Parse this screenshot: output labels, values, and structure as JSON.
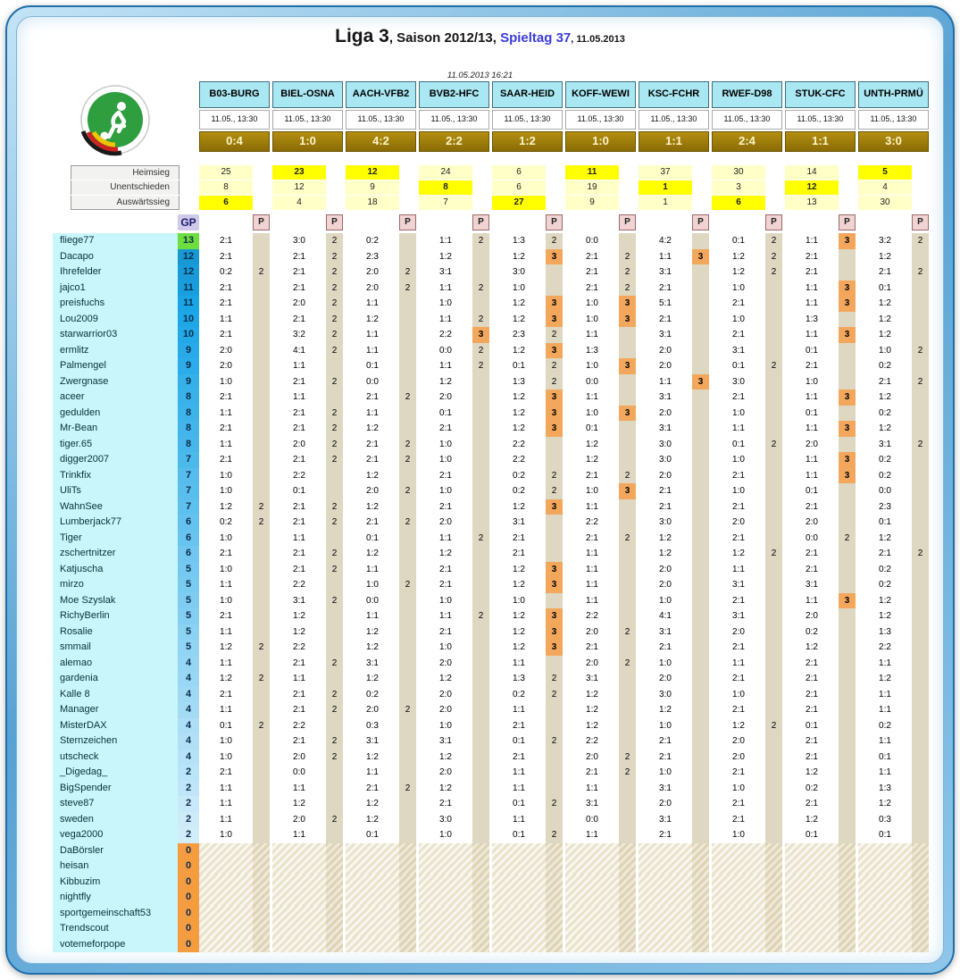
{
  "title": {
    "part1": "Liga 3",
    "part2": ", Saison 2012/13, ",
    "part3": "Spieltag 37",
    "part4": ", 11.05.2013"
  },
  "timestamp": "11.05.2013 16:21",
  "outcome_labels": {
    "home": "Heimsieg",
    "draw": "Unentschieden",
    "away": "Auswärtssieg"
  },
  "gp_header": "GP",
  "p_header": "P",
  "colors": {
    "header_cyan": "#a9e7f2",
    "result_bg1": "#b38f10",
    "result_bg2": "#8a6b06",
    "tip_bg": "#ffffc8",
    "tip_hot": "#ffff00",
    "strip": "#ded7c1",
    "p3": "#f3a75c",
    "gp_zero": "#f59b40",
    "gp_top": "#6ede3e",
    "name_bg": "#c9f6fa",
    "accent_blue": "#3b3bd6"
  },
  "matches": [
    {
      "code": "B03-BURG",
      "datetime": "11.05., 13:30",
      "result": "0:4",
      "tips": {
        "home": 25,
        "draw": 8,
        "away": 6
      },
      "outcome": "away"
    },
    {
      "code": "BIEL-OSNA",
      "datetime": "11.05., 13:30",
      "result": "1:0",
      "tips": {
        "home": 23,
        "draw": 12,
        "away": 4
      },
      "outcome": "home"
    },
    {
      "code": "AACH-VFB2",
      "datetime": "11.05., 13:30",
      "result": "4:2",
      "tips": {
        "home": 12,
        "draw": 9,
        "away": 18
      },
      "outcome": "home"
    },
    {
      "code": "BVB2-HFC",
      "datetime": "11.05., 13:30",
      "result": "2:2",
      "tips": {
        "home": 24,
        "draw": 8,
        "away": 7
      },
      "outcome": "draw"
    },
    {
      "code": "SAAR-HEID",
      "datetime": "11.05., 13:30",
      "result": "1:2",
      "tips": {
        "home": 6,
        "draw": 6,
        "away": 27
      },
      "outcome": "away"
    },
    {
      "code": "KOFF-WEWI",
      "datetime": "11.05., 13:30",
      "result": "1:0",
      "tips": {
        "home": 11,
        "draw": 19,
        "away": 9
      },
      "outcome": "home"
    },
    {
      "code": "KSC-FCHR",
      "datetime": "11.05., 13:30",
      "result": "1:1",
      "tips": {
        "home": 37,
        "draw": 1,
        "away": 1
      },
      "outcome": "draw"
    },
    {
      "code": "RWEF-D98",
      "datetime": "11.05., 13:30",
      "result": "2:4",
      "tips": {
        "home": 30,
        "draw": 3,
        "away": 6
      },
      "outcome": "away"
    },
    {
      "code": "STUK-CFC",
      "datetime": "11.05., 13:30",
      "result": "1:1",
      "tips": {
        "home": 14,
        "draw": 12,
        "away": 13
      },
      "outcome": "draw"
    },
    {
      "code": "UNTH-PRMÜ",
      "datetime": "11.05., 13:30",
      "result": "3:0",
      "tips": {
        "home": 5,
        "draw": 4,
        "away": 30
      },
      "outcome": "home"
    }
  ],
  "players": [
    {
      "name": "fliege77",
      "gp": 13,
      "tips": [
        "2:1",
        "3:0",
        "0:2",
        "1:1",
        "1:3",
        "0:0",
        "4:2",
        "0:1",
        "1:1",
        "3:2"
      ],
      "points": [
        "",
        "2",
        "",
        "2",
        "2",
        "",
        "",
        "2",
        "3",
        "2"
      ]
    },
    {
      "name": "Dacapo",
      "gp": 12,
      "tips": [
        "2:1",
        "2:1",
        "2:3",
        "1:2",
        "1:2",
        "2:1",
        "1:1",
        "1:2",
        "2:1",
        "1:2"
      ],
      "points": [
        "",
        "2",
        "",
        "",
        "3",
        "2",
        "3",
        "2",
        "",
        ""
      ]
    },
    {
      "name": "Ihrefelder",
      "gp": 12,
      "tips": [
        "0:2",
        "2:1",
        "2:0",
        "3:1",
        "3:0",
        "2:1",
        "3:1",
        "1:2",
        "2:1",
        "2:1"
      ],
      "points": [
        "2",
        "2",
        "2",
        "",
        "",
        "2",
        "",
        "2",
        "",
        "2"
      ]
    },
    {
      "name": "jajco1",
      "gp": 11,
      "tips": [
        "2:1",
        "2:1",
        "2:0",
        "1:1",
        "1:0",
        "2:1",
        "2:1",
        "1:0",
        "1:1",
        "0:1"
      ],
      "points": [
        "",
        "2",
        "2",
        "2",
        "",
        "2",
        "",
        "",
        "3",
        ""
      ]
    },
    {
      "name": "preisfuchs",
      "gp": 11,
      "tips": [
        "2:1",
        "2:0",
        "1:1",
        "1:0",
        "1:2",
        "1:0",
        "5:1",
        "2:1",
        "1:1",
        "1:2"
      ],
      "points": [
        "",
        "2",
        "",
        "",
        "3",
        "3",
        "",
        "",
        "3",
        ""
      ]
    },
    {
      "name": "Lou2009",
      "gp": 10,
      "tips": [
        "1:1",
        "2:1",
        "1:2",
        "1:1",
        "1:2",
        "1:0",
        "2:1",
        "1:0",
        "1:3",
        "1:2"
      ],
      "points": [
        "",
        "2",
        "",
        "2",
        "3",
        "3",
        "",
        "",
        "",
        ""
      ]
    },
    {
      "name": "starwarrior03",
      "gp": 10,
      "tips": [
        "2:1",
        "3:2",
        "1:1",
        "2:2",
        "2:3",
        "1:1",
        "3:1",
        "2:1",
        "1:1",
        "1:2"
      ],
      "points": [
        "",
        "2",
        "",
        "3",
        "2",
        "",
        "",
        "",
        "3",
        ""
      ]
    },
    {
      "name": "ermlitz",
      "gp": 9,
      "tips": [
        "2:0",
        "4:1",
        "1:1",
        "0:0",
        "1:2",
        "1:3",
        "2:0",
        "3:1",
        "0:1",
        "1:0"
      ],
      "points": [
        "",
        "2",
        "",
        "2",
        "3",
        "",
        "",
        "",
        "",
        "2"
      ]
    },
    {
      "name": "Palmengel",
      "gp": 9,
      "tips": [
        "2:0",
        "1:1",
        "0:1",
        "1:1",
        "0:1",
        "1:0",
        "2:0",
        "0:1",
        "2:1",
        "0:2"
      ],
      "points": [
        "",
        "",
        "",
        "2",
        "2",
        "3",
        "",
        "2",
        "",
        ""
      ]
    },
    {
      "name": "Zwergnase",
      "gp": 9,
      "tips": [
        "1:0",
        "2:1",
        "0:0",
        "1:2",
        "1:3",
        "0:0",
        "1:1",
        "3:0",
        "1:0",
        "2:1"
      ],
      "points": [
        "",
        "2",
        "",
        "",
        "2",
        "",
        "3",
        "",
        "",
        "2"
      ]
    },
    {
      "name": "aceer",
      "gp": 8,
      "tips": [
        "2:1",
        "1:1",
        "2:1",
        "2:0",
        "1:2",
        "1:1",
        "3:1",
        "2:1",
        "1:1",
        "1:2"
      ],
      "points": [
        "",
        "",
        "2",
        "",
        "3",
        "",
        "",
        "",
        "3",
        ""
      ]
    },
    {
      "name": "gedulden",
      "gp": 8,
      "tips": [
        "1:1",
        "2:1",
        "1:1",
        "0:1",
        "1:2",
        "1:0",
        "2:0",
        "1:0",
        "0:1",
        "0:2"
      ],
      "points": [
        "",
        "2",
        "",
        "",
        "3",
        "3",
        "",
        "",
        "",
        ""
      ]
    },
    {
      "name": "Mr-Bean",
      "gp": 8,
      "tips": [
        "2:1",
        "2:1",
        "1:2",
        "2:1",
        "1:2",
        "0:1",
        "3:1",
        "1:1",
        "1:1",
        "1:2"
      ],
      "points": [
        "",
        "2",
        "",
        "",
        "3",
        "",
        "",
        "",
        "3",
        ""
      ]
    },
    {
      "name": "tiger.65",
      "gp": 8,
      "tips": [
        "1:1",
        "2:0",
        "2:1",
        "1:0",
        "2:2",
        "1:2",
        "3:0",
        "0:1",
        "2:0",
        "3:1"
      ],
      "points": [
        "",
        "2",
        "2",
        "",
        "",
        "",
        "",
        "2",
        "",
        "2"
      ]
    },
    {
      "name": "digger2007",
      "gp": 7,
      "tips": [
        "2:1",
        "2:1",
        "2:1",
        "1:0",
        "2:2",
        "1:2",
        "3:0",
        "1:0",
        "1:1",
        "0:2"
      ],
      "points": [
        "",
        "2",
        "2",
        "",
        "",
        "",
        "",
        "",
        "3",
        ""
      ]
    },
    {
      "name": "Trinkfix",
      "gp": 7,
      "tips": [
        "1:0",
        "2:2",
        "1:2",
        "2:1",
        "0:2",
        "2:1",
        "2:0",
        "2:1",
        "1:1",
        "0:2"
      ],
      "points": [
        "",
        "",
        "",
        "",
        "2",
        "2",
        "",
        "",
        "3",
        ""
      ]
    },
    {
      "name": "UliTs",
      "gp": 7,
      "tips": [
        "1:0",
        "0:1",
        "2:0",
        "1:0",
        "0:2",
        "1:0",
        "2:1",
        "1:0",
        "0:1",
        "0:0"
      ],
      "points": [
        "",
        "",
        "2",
        "",
        "2",
        "3",
        "",
        "",
        "",
        ""
      ]
    },
    {
      "name": "WahnSee",
      "gp": 7,
      "tips": [
        "1:2",
        "2:1",
        "1:2",
        "2:1",
        "1:2",
        "1:1",
        "2:1",
        "2:1",
        "2:1",
        "2:3"
      ],
      "points": [
        "2",
        "2",
        "",
        "",
        "3",
        "",
        "",
        "",
        "",
        ""
      ]
    },
    {
      "name": "Lumberjack77",
      "gp": 6,
      "tips": [
        "0:2",
        "2:1",
        "2:1",
        "2:0",
        "3:1",
        "2:2",
        "3:0",
        "2:0",
        "2:0",
        "0:1"
      ],
      "points": [
        "2",
        "2",
        "2",
        "",
        "",
        "",
        "",
        "",
        "",
        ""
      ]
    },
    {
      "name": "Tiger",
      "gp": 6,
      "tips": [
        "1:0",
        "1:1",
        "0:1",
        "1:1",
        "2:1",
        "2:1",
        "1:2",
        "2:1",
        "0:0",
        "1:2"
      ],
      "points": [
        "",
        "",
        "",
        "2",
        "",
        "2",
        "",
        "",
        "2",
        ""
      ]
    },
    {
      "name": "zschertnitzer",
      "gp": 6,
      "tips": [
        "2:1",
        "2:1",
        "1:2",
        "1:2",
        "2:1",
        "1:1",
        "1:2",
        "1:2",
        "2:1",
        "2:1"
      ],
      "points": [
        "",
        "2",
        "",
        "",
        "",
        "",
        "",
        "2",
        "",
        "2"
      ]
    },
    {
      "name": "Katjuscha",
      "gp": 5,
      "tips": [
        "1:0",
        "2:1",
        "1:1",
        "2:1",
        "1:2",
        "1:1",
        "2:0",
        "1:1",
        "2:1",
        "0:2"
      ],
      "points": [
        "",
        "2",
        "",
        "",
        "3",
        "",
        "",
        "",
        "",
        ""
      ]
    },
    {
      "name": "mirzo",
      "gp": 5,
      "tips": [
        "1:1",
        "2:2",
        "1:0",
        "2:1",
        "1:2",
        "1:1",
        "2:0",
        "3:1",
        "3:1",
        "0:2"
      ],
      "points": [
        "",
        "",
        "2",
        "",
        "3",
        "",
        "",
        "",
        "",
        ""
      ]
    },
    {
      "name": "Moe Szyslak",
      "gp": 5,
      "tips": [
        "1:0",
        "3:1",
        "0:0",
        "1:0",
        "1:0",
        "1:1",
        "1:0",
        "2:1",
        "1:1",
        "1:2"
      ],
      "points": [
        "",
        "2",
        "",
        "",
        "",
        "",
        "",
        "",
        "3",
        ""
      ]
    },
    {
      "name": "RichyBerlin",
      "gp": 5,
      "tips": [
        "2:1",
        "1:2",
        "1:1",
        "1:1",
        "1:2",
        "2:2",
        "4:1",
        "3:1",
        "2:0",
        "1:2"
      ],
      "points": [
        "",
        "",
        "",
        "2",
        "3",
        "",
        "",
        "",
        "",
        ""
      ]
    },
    {
      "name": "Rosalie",
      "gp": 5,
      "tips": [
        "1:1",
        "1:2",
        "1:2",
        "2:1",
        "1:2",
        "2:0",
        "3:1",
        "2:0",
        "0:2",
        "1:3"
      ],
      "points": [
        "",
        "",
        "",
        "",
        "3",
        "2",
        "",
        "",
        "",
        ""
      ]
    },
    {
      "name": "smmail",
      "gp": 5,
      "tips": [
        "1:2",
        "2:2",
        "1:2",
        "1:0",
        "1:2",
        "2:1",
        "2:1",
        "2:1",
        "1:2",
        "2:2"
      ],
      "points": [
        "2",
        "",
        "",
        "",
        "3",
        "",
        "",
        "",
        "",
        ""
      ]
    },
    {
      "name": "alemao",
      "gp": 4,
      "tips": [
        "1:1",
        "2:1",
        "3:1",
        "2:0",
        "1:1",
        "2:0",
        "1:0",
        "1:1",
        "2:1",
        "1:1"
      ],
      "points": [
        "",
        "2",
        "",
        "",
        "",
        "2",
        "",
        "",
        "",
        ""
      ]
    },
    {
      "name": "gardenia",
      "gp": 4,
      "tips": [
        "1:2",
        "1:1",
        "1:2",
        "1:2",
        "1:3",
        "3:1",
        "2:0",
        "2:1",
        "2:1",
        "1:2"
      ],
      "points": [
        "2",
        "",
        "",
        "",
        "2",
        "",
        "",
        "",
        "",
        ""
      ]
    },
    {
      "name": "Kalle 8",
      "gp": 4,
      "tips": [
        "2:1",
        "2:1",
        "0:2",
        "2:0",
        "0:2",
        "1:2",
        "3:0",
        "1:0",
        "2:1",
        "1:1"
      ],
      "points": [
        "",
        "2",
        "",
        "",
        "2",
        "",
        "",
        "",
        "",
        ""
      ]
    },
    {
      "name": "Manager",
      "gp": 4,
      "tips": [
        "1:1",
        "2:1",
        "2:0",
        "2:0",
        "1:1",
        "1:2",
        "1:2",
        "2:1",
        "2:1",
        "1:1"
      ],
      "points": [
        "",
        "2",
        "2",
        "",
        "",
        "",
        "",
        "",
        "",
        ""
      ]
    },
    {
      "name": "MisterDAX",
      "gp": 4,
      "tips": [
        "0:1",
        "2:2",
        "0:3",
        "1:0",
        "2:1",
        "1:2",
        "1:0",
        "1:2",
        "0:1",
        "0:2"
      ],
      "points": [
        "2",
        "",
        "",
        "",
        "",
        "",
        "",
        "2",
        "",
        ""
      ]
    },
    {
      "name": "Sternzeichen",
      "gp": 4,
      "tips": [
        "1:0",
        "2:1",
        "3:1",
        "3:1",
        "0:1",
        "2:2",
        "2:1",
        "2:0",
        "2:1",
        "1:1"
      ],
      "points": [
        "",
        "2",
        "",
        "",
        "2",
        "",
        "",
        "",
        "",
        ""
      ]
    },
    {
      "name": "utscheck",
      "gp": 4,
      "tips": [
        "1:0",
        "2:0",
        "1:2",
        "1:2",
        "2:1",
        "2:0",
        "2:1",
        "2:0",
        "2:1",
        "0:1"
      ],
      "points": [
        "",
        "2",
        "",
        "",
        "",
        "2",
        "",
        "",
        "",
        ""
      ]
    },
    {
      "name": "_Digedag_",
      "gp": 2,
      "tips": [
        "2:1",
        "0:0",
        "1:1",
        "2:0",
        "1:1",
        "2:1",
        "1:0",
        "2:1",
        "1:2",
        "1:1"
      ],
      "points": [
        "",
        "",
        "",
        "",
        "",
        "2",
        "",
        "",
        "",
        ""
      ]
    },
    {
      "name": "BigSpender",
      "gp": 2,
      "tips": [
        "1:1",
        "1:1",
        "2:1",
        "1:2",
        "1:1",
        "1:1",
        "3:1",
        "1:0",
        "0:2",
        "1:3"
      ],
      "points": [
        "",
        "",
        "2",
        "",
        "",
        "",
        "",
        "",
        "",
        ""
      ]
    },
    {
      "name": "steve87",
      "gp": 2,
      "tips": [
        "1:1",
        "1:2",
        "1:2",
        "2:1",
        "0:1",
        "3:1",
        "2:0",
        "2:1",
        "2:1",
        "1:2"
      ],
      "points": [
        "",
        "",
        "",
        "",
        "2",
        "",
        "",
        "",
        "",
        ""
      ]
    },
    {
      "name": "sweden",
      "gp": 2,
      "tips": [
        "1:1",
        "2:0",
        "1:2",
        "3:0",
        "1:1",
        "0:0",
        "3:1",
        "2:1",
        "1:2",
        "0:3"
      ],
      "points": [
        "",
        "2",
        "",
        "",
        "",
        "",
        "",
        "",
        "",
        ""
      ]
    },
    {
      "name": "vega2000",
      "gp": 2,
      "tips": [
        "1:0",
        "1:1",
        "0:1",
        "1:0",
        "0:1",
        "1:1",
        "2:1",
        "1:0",
        "0:1",
        "0:1"
      ],
      "points": [
        "",
        "",
        "",
        "",
        "2",
        "",
        "",
        "",
        "",
        ""
      ]
    },
    {
      "name": "DaBörsler",
      "gp": 0,
      "tips": null,
      "points": null
    },
    {
      "name": "heisan",
      "gp": 0,
      "tips": null,
      "points": null
    },
    {
      "name": "Kibbuzim",
      "gp": 0,
      "tips": null,
      "points": null
    },
    {
      "name": "nightfly",
      "gp": 0,
      "tips": null,
      "points": null
    },
    {
      "name": "sportgemeinschaft53",
      "gp": 0,
      "tips": null,
      "points": null
    },
    {
      "name": "Trendscout",
      "gp": 0,
      "tips": null,
      "points": null
    },
    {
      "name": "votemeforpope",
      "gp": 0,
      "tips": null,
      "points": null
    }
  ]
}
